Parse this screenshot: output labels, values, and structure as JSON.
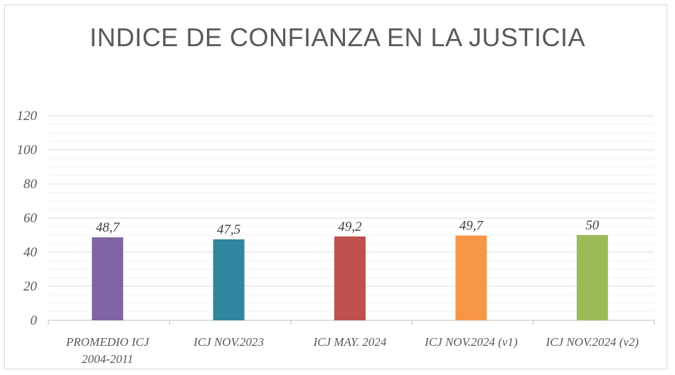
{
  "chart_data": {
    "type": "bar",
    "title": "INDICE DE CONFIANZA EN LA JUSTICIA",
    "xlabel": "",
    "ylabel": "",
    "categories": [
      [
        "PROMEDIO ICJ",
        "2004-2011"
      ],
      [
        "ICJ NOV.2023"
      ],
      [
        "ICJ MAY. 2024"
      ],
      [
        "ICJ NOV.2024 (v1)"
      ],
      [
        "ICJ NOV.2024 (v2)"
      ]
    ],
    "values": [
      48.7,
      47.5,
      49.2,
      49.7,
      50
    ],
    "data_labels": [
      "48,7",
      "47,5",
      "49,2",
      "49,7",
      "50"
    ],
    "colors": [
      "#8064a2",
      "#31859c",
      "#c0504d",
      "#f79646",
      "#9bbb59"
    ],
    "ylim": [
      0,
      120
    ],
    "yticks": [
      0,
      20,
      40,
      60,
      80,
      100,
      120
    ],
    "grid": true,
    "minor_grid": true,
    "legend": "none"
  }
}
